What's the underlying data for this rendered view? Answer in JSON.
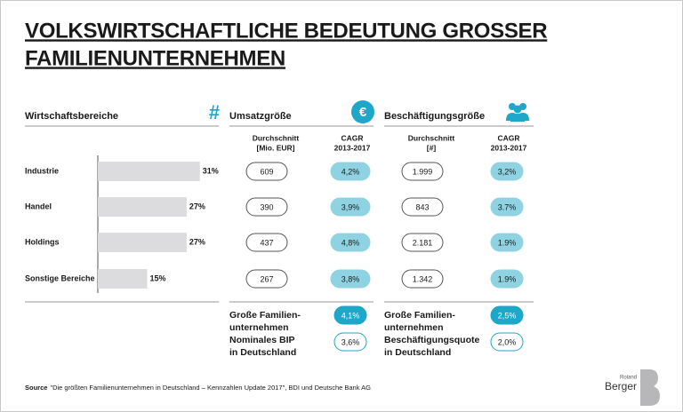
{
  "title": [
    "VOLKSWIRTSCHAFTLICHE BEDEUTUNG GROSSER",
    "FAMILIENUNTERNEHMEN"
  ],
  "chart_data": {
    "type": "bar",
    "orientation": "horizontal",
    "title": "Wirtschaftsbereiche",
    "icon": "#",
    "categories": [
      "Industrie",
      "Handel",
      "Holdings",
      "Sonstige Bereiche"
    ],
    "values": [
      31,
      27,
      27,
      15
    ],
    "value_labels": [
      "31%",
      "27%",
      "27%",
      "15%"
    ],
    "color": "#dcdcdf"
  },
  "revenue": {
    "title": "Umsatzgröße",
    "icon": "€",
    "columns": [
      [
        "Durchschnitt",
        "[Mio. EUR]"
      ],
      [
        "CAGR",
        "2013-2017"
      ]
    ],
    "rows": [
      [
        "609",
        "4,2%"
      ],
      [
        "390",
        "3,9%"
      ],
      [
        "437",
        "4,8%"
      ],
      [
        "267",
        "3,8%"
      ]
    ],
    "summary": [
      {
        "label": [
          "Große Familien-",
          "unternehmen"
        ],
        "value": "4,1%"
      },
      {
        "label": [
          "Nominales BIP",
          "in Deutschland"
        ],
        "value": "3,6%"
      }
    ]
  },
  "employment": {
    "title": "Beschäftigungsgröße",
    "columns": [
      [
        "Durchschnitt",
        "[#]"
      ],
      [
        "CAGR",
        "2013-2017"
      ]
    ],
    "rows": [
      [
        "1.999",
        "3,2%"
      ],
      [
        "843",
        "3.7%"
      ],
      [
        "2.181",
        "1.9%"
      ],
      [
        "1.342",
        "1.9%"
      ]
    ],
    "summary": [
      {
        "label": [
          "Große Familien-",
          "unternehmen"
        ],
        "value": "2,5%"
      },
      {
        "label": [
          "Beschäftigungsquote",
          "in Deutschland"
        ],
        "value": "2,0%"
      }
    ]
  },
  "source": {
    "label": "Source",
    "text": "\"Die größten Familienunternehmen in Deutschland – Kennzahlen Update 2017\", BDI und Deutsche Bank AG"
  },
  "logo": {
    "small": "Roland",
    "name": "Berger"
  }
}
